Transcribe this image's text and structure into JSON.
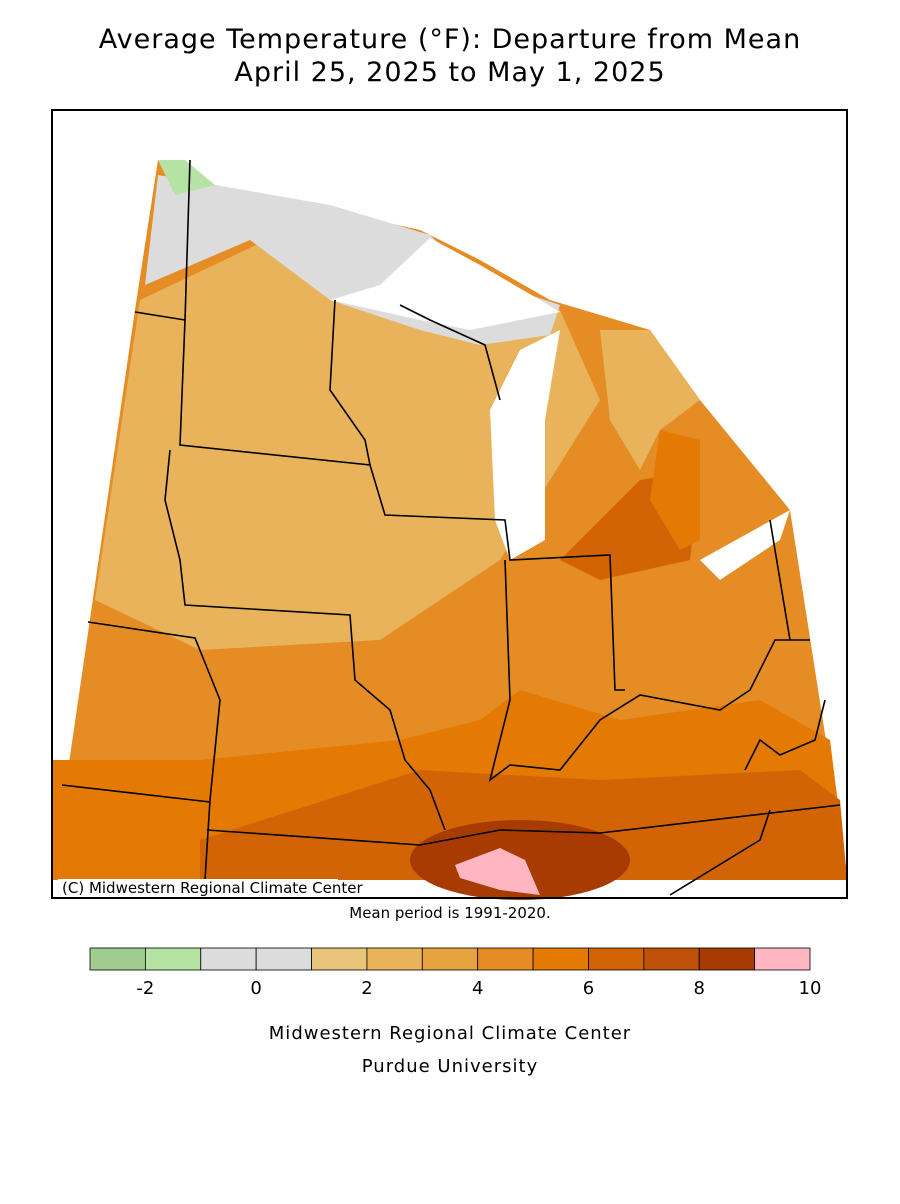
{
  "title": [
    "Average Temperature (°F): Departure from Mean",
    "April 25, 2025 to May 1, 2025"
  ],
  "map": {
    "credit": "(C) Midwestern Regional Climate Center"
  },
  "note": "Mean period is 1991-2020.",
  "legend": {
    "bins": [
      -3,
      -2,
      -1,
      0,
      1,
      2,
      3,
      4,
      5,
      6,
      7,
      8,
      9,
      10
    ],
    "colors": [
      "#a0cc8f",
      "#b5e3a3",
      "#dcdcdc",
      "#dcdcdc",
      "#e8c57a",
      "#e8b35a",
      "#e6a23e",
      "#e58c25",
      "#e47a03",
      "#d26406",
      "#bf5208",
      "#a83b02",
      "#ffb6c1"
    ],
    "ticks": [
      -2,
      0,
      2,
      4,
      6,
      8,
      10
    ]
  },
  "footer": [
    "Midwestern Regional Climate Center",
    "Purdue University"
  ]
}
